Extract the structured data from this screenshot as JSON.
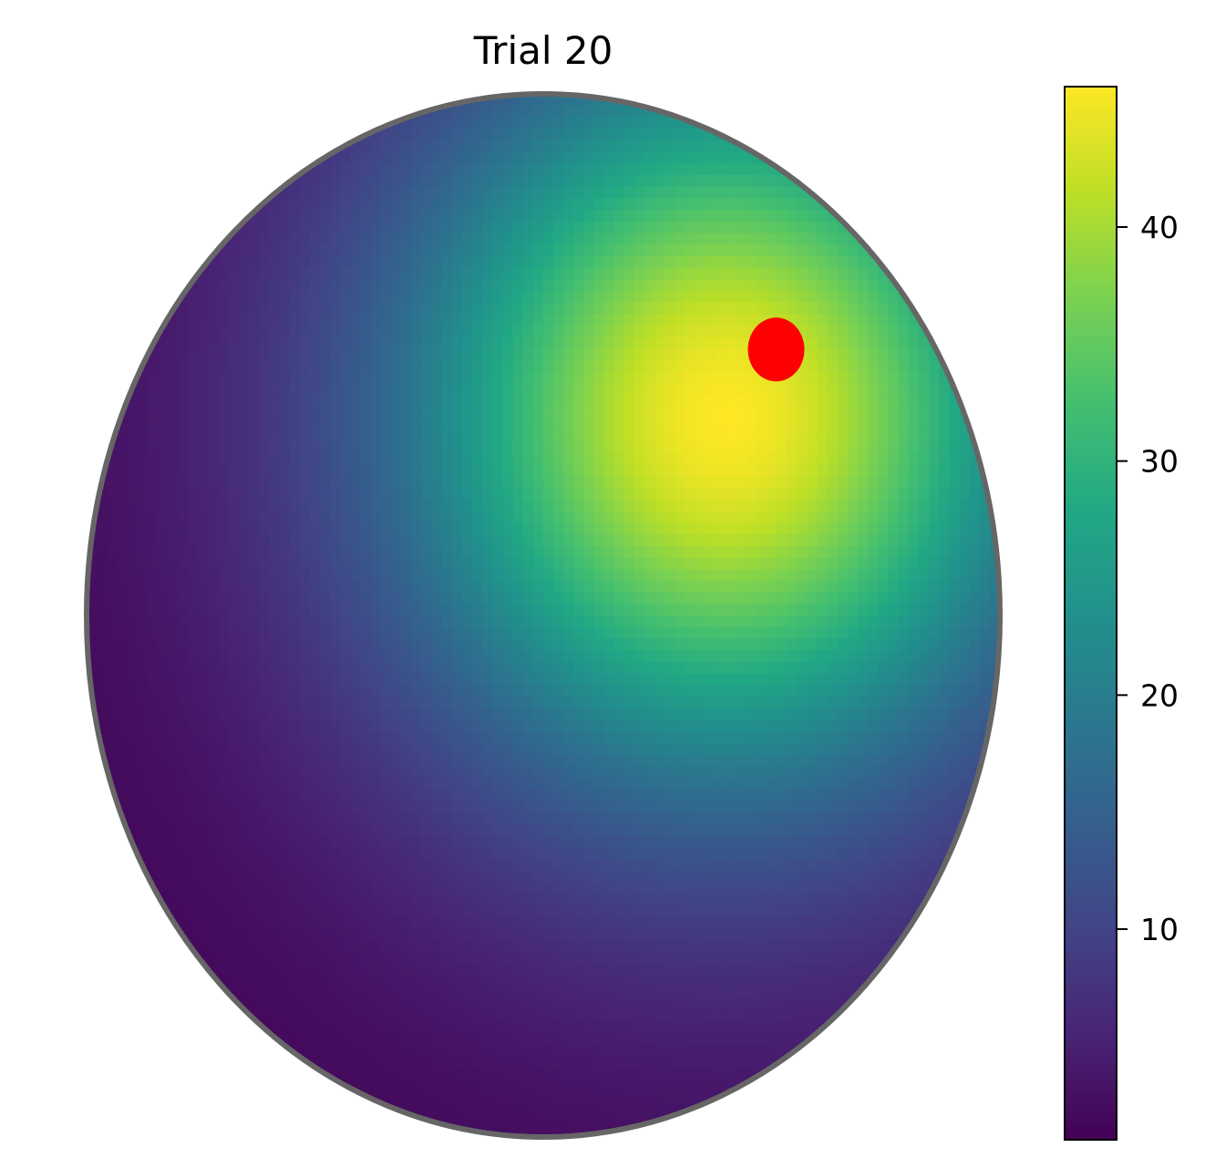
{
  "chart_data": {
    "type": "heatmap",
    "title": "Trial 20",
    "domain_shape": "circle",
    "colormap": "viridis",
    "colorbar": {
      "min": 1,
      "max": 46,
      "ticks": [
        10,
        20,
        30,
        40
      ],
      "tick_labels": [
        "10",
        "20",
        "30",
        "40"
      ]
    },
    "field": {
      "peak_value": 46,
      "peak_location": [
        0.4,
        0.38
      ],
      "base_value": 1,
      "spread": 0.9
    },
    "marker": {
      "location": [
        0.51,
        0.51
      ],
      "color": "#ff0000"
    },
    "boundary_color": "#666666",
    "axes_visible": false
  }
}
